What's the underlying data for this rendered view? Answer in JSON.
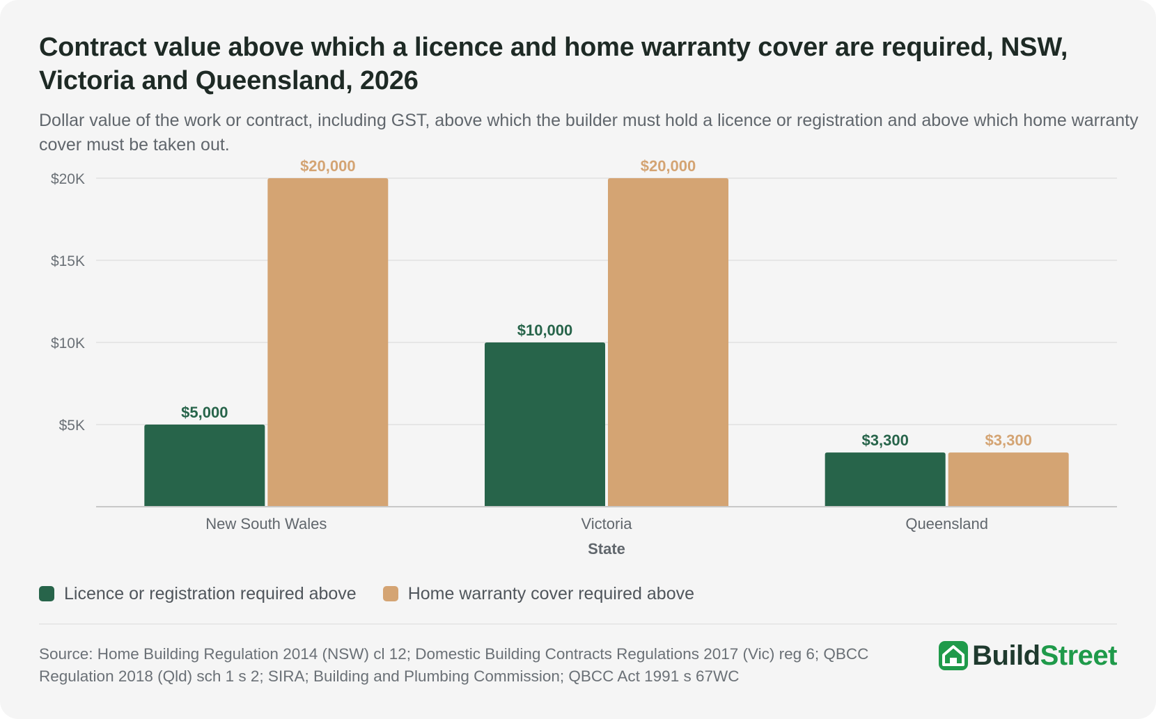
{
  "title": "Contract value above which a licence and home warranty cover are required, NSW, Victoria and Queensland, 2026",
  "subtitle": "Dollar value of the work or contract, including GST, above which the builder must hold a licence or registration and above which home warranty cover must be taken out.",
  "colors": {
    "licence": "#27644a",
    "warranty": "#d4a473",
    "grid": "#e2e2e2",
    "axis": "#c8c8c8",
    "background": "#f5f5f5"
  },
  "chart_data": {
    "type": "bar",
    "categories": [
      "New South Wales",
      "Victoria",
      "Queensland"
    ],
    "series": [
      {
        "name": "Licence or registration required above",
        "values": [
          5000,
          10000,
          3300
        ],
        "labels": [
          "$5,000",
          "$10,000",
          "$3,300"
        ]
      },
      {
        "name": "Home warranty cover required above",
        "values": [
          20000,
          20000,
          3300
        ],
        "labels": [
          "$20,000",
          "$20,000",
          "$3,300"
        ]
      }
    ],
    "xlabel": "State",
    "ylabel": "",
    "ylim": [
      0,
      20000
    ],
    "yticks": [
      5000,
      10000,
      15000,
      20000
    ],
    "ytick_labels": [
      "$5K",
      "$10K",
      "$15K",
      "$20K"
    ],
    "grid": true,
    "legend": "bottom-left"
  },
  "legend": [
    {
      "label": "Licence or registration required above",
      "color": "#27644a"
    },
    {
      "label": "Home warranty cover required above",
      "color": "#d4a473"
    }
  ],
  "source": "Source: Home Building Regulation 2014 (NSW) cl 12; Domestic Building Contracts Regulations 2017 (Vic) reg 6; QBCC Regulation 2018 (Qld) sch 1 s 2; SIRA; Building and Plumbing Commission; QBCC Act 1991 s 67WC",
  "brand": {
    "part1": "Build",
    "part2": "Street",
    "icon": "house-icon"
  }
}
